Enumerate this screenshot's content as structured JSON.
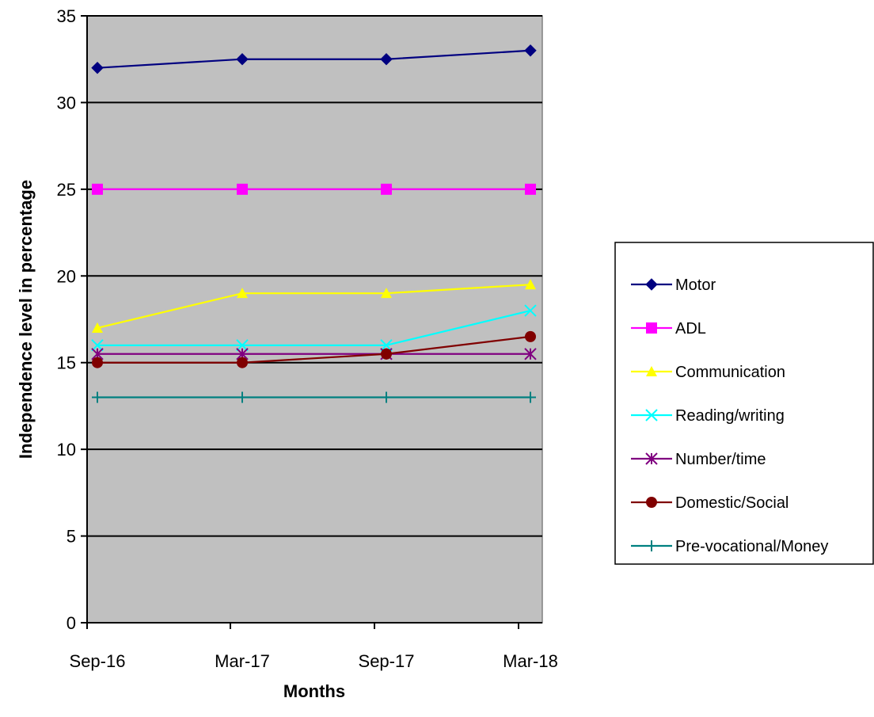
{
  "chart_data": {
    "type": "line",
    "title": "",
    "xlabel": "Months",
    "ylabel": "Independence level in percentage",
    "categories": [
      "Sep-16",
      "Mar-17",
      "Sep-17",
      "Mar-18"
    ],
    "ylim": [
      0,
      35
    ],
    "yticks": [
      0,
      5,
      10,
      15,
      20,
      25,
      30,
      35
    ],
    "grid": true,
    "legend_position": "right",
    "plot_background": "#c0c0c0",
    "series": [
      {
        "name": "Motor",
        "values": [
          32,
          32.5,
          32.5,
          33
        ],
        "color": "#000080",
        "marker": "diamond"
      },
      {
        "name": "ADL",
        "values": [
          25,
          25,
          25,
          25
        ],
        "color": "#ff00ff",
        "marker": "square"
      },
      {
        "name": "Communication",
        "values": [
          17,
          19,
          19,
          19.5
        ],
        "color": "#ffff00",
        "marker": "triangle"
      },
      {
        "name": "Reading/writing",
        "values": [
          16,
          16,
          16,
          18
        ],
        "color": "#00ffff",
        "marker": "x"
      },
      {
        "name": "Number/time",
        "values": [
          15.5,
          15.5,
          15.5,
          15.5
        ],
        "color": "#800080",
        "marker": "star"
      },
      {
        "name": "Domestic/Social",
        "values": [
          15,
          15,
          15.5,
          16.5
        ],
        "color": "#800000",
        "marker": "circle"
      },
      {
        "name": "Pre-vocational/Money",
        "values": [
          13,
          13,
          13,
          13
        ],
        "color": "#008080",
        "marker": "plus"
      }
    ]
  }
}
